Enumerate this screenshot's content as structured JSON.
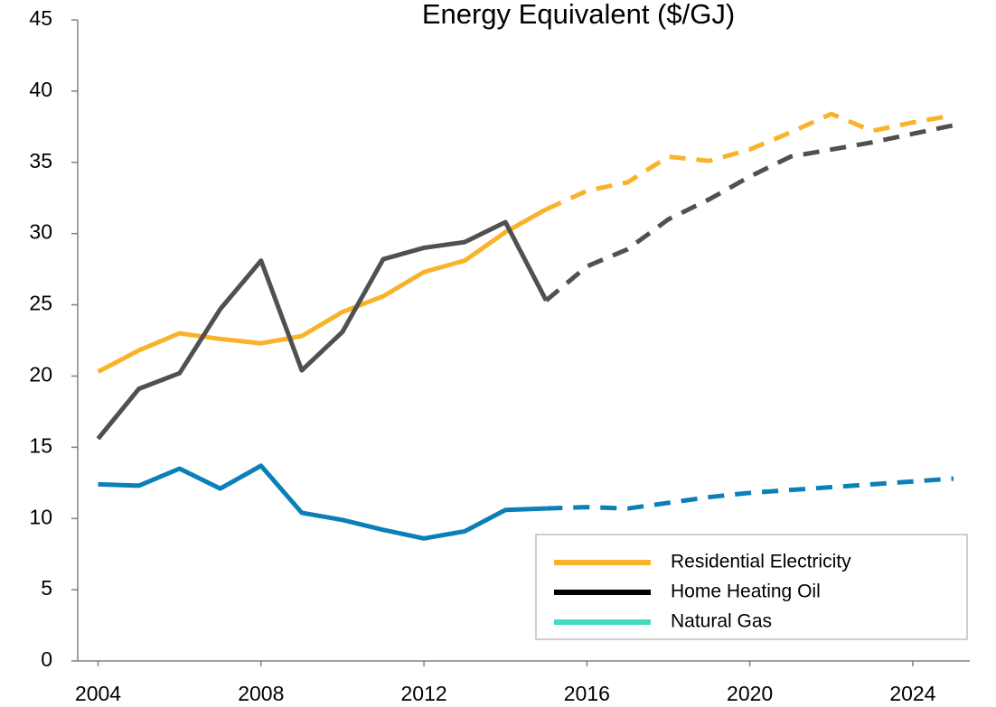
{
  "chart_data": {
    "type": "line",
    "title": "Energy Equivalent ($/GJ)",
    "x": [
      2004,
      2005,
      2006,
      2007,
      2008,
      2009,
      2010,
      2011,
      2012,
      2013,
      2014,
      2015,
      2016,
      2017,
      2018,
      2019,
      2020,
      2021,
      2022,
      2023,
      2024,
      2025
    ],
    "dashed_from": 2015,
    "series": [
      {
        "name": "Residential Electricity",
        "color": "#f9b32a",
        "legend_color": "#f9b32a",
        "values": [
          20.3,
          21.8,
          23.0,
          22.6,
          22.3,
          22.8,
          24.5,
          25.6,
          27.3,
          28.1,
          30.1,
          31.7,
          33.0,
          33.6,
          35.4,
          35.1,
          35.9,
          37.1,
          38.4,
          37.2,
          37.8,
          38.3
        ]
      },
      {
        "name": "Home Heating Oil",
        "color": "#505050",
        "legend_color": "#000000",
        "values": [
          15.6,
          19.1,
          20.2,
          24.7,
          28.1,
          20.4,
          23.1,
          28.2,
          29.0,
          29.4,
          30.8,
          25.3,
          27.7,
          28.9,
          31.0,
          32.4,
          34.0,
          35.4,
          35.9,
          36.4,
          37.0,
          37.6
        ]
      },
      {
        "name": "Natural Gas",
        "color": "#0a7fb8",
        "legend_color": "#40dcc0",
        "values": [
          12.4,
          12.3,
          13.5,
          12.1,
          13.7,
          10.4,
          9.9,
          9.2,
          8.6,
          9.1,
          10.6,
          10.7,
          10.8,
          10.7,
          11.1,
          11.5,
          11.8,
          12.0,
          12.2,
          12.4,
          12.6,
          12.8
        ]
      }
    ],
    "xlim": [
      2003.5,
      2025.4
    ],
    "xticks": [
      2004,
      2008,
      2012,
      2016,
      2020,
      2024
    ],
    "ylim": [
      0,
      45
    ],
    "yticks": [
      0,
      5,
      10,
      15,
      20,
      25,
      30,
      35,
      40,
      45
    ],
    "legend": "lower right"
  }
}
